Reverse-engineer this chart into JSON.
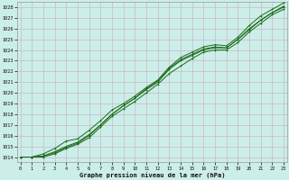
{
  "xlabel": "Graphe pression niveau de la mer (hPa)",
  "ylim": [
    1013.5,
    1028.5
  ],
  "xlim": [
    -0.3,
    23.3
  ],
  "yticks": [
    1014,
    1015,
    1016,
    1017,
    1018,
    1019,
    1020,
    1021,
    1022,
    1023,
    1024,
    1025,
    1026,
    1027,
    1028
  ],
  "xticks": [
    0,
    1,
    2,
    3,
    4,
    5,
    6,
    7,
    8,
    9,
    10,
    11,
    12,
    13,
    14,
    15,
    16,
    17,
    18,
    19,
    20,
    21,
    22,
    23
  ],
  "background_color": "#cceee8",
  "grid_color": "#c8b8c8",
  "line_color": "#1a6b1a",
  "series": [
    [
      1014.0,
      1014.0,
      1014.1,
      1014.5,
      1015.0,
      1015.4,
      1016.1,
      1017.0,
      1018.0,
      1018.8,
      1019.5,
      1020.3,
      1021.0,
      1022.2,
      1023.0,
      1023.5,
      1024.0,
      1024.2,
      1024.2,
      1025.0,
      1026.0,
      1026.8,
      1027.5,
      1028.0
    ],
    [
      1014.0,
      1014.0,
      1014.0,
      1014.3,
      1014.8,
      1015.2,
      1015.8,
      1016.8,
      1017.8,
      1018.5,
      1019.2,
      1020.0,
      1020.8,
      1021.8,
      1022.5,
      1023.2,
      1023.8,
      1024.0,
      1024.0,
      1024.7,
      1025.7,
      1026.5,
      1027.3,
      1027.8
    ],
    [
      1014.0,
      1014.0,
      1014.3,
      1014.8,
      1015.5,
      1015.7,
      1016.5,
      1017.4,
      1018.4,
      1019.0,
      1019.7,
      1020.5,
      1021.2,
      1022.4,
      1023.3,
      1023.8,
      1024.3,
      1024.5,
      1024.4,
      1025.2,
      1026.3,
      1027.2,
      1027.8,
      1028.4
    ],
    [
      1014.0,
      1014.0,
      1014.1,
      1014.4,
      1014.9,
      1015.3,
      1016.0,
      1017.0,
      1018.0,
      1018.8,
      1019.5,
      1020.4,
      1021.1,
      1022.3,
      1023.1,
      1023.6,
      1024.1,
      1024.3,
      1024.2,
      1025.0,
      1025.9,
      1026.8,
      1027.5,
      1028.1
    ]
  ],
  "marker_x": [
    0,
    1,
    2,
    3,
    4,
    5,
    6,
    7,
    8,
    9,
    10,
    11,
    12,
    13,
    14,
    15,
    16,
    17,
    18,
    19,
    20,
    21,
    22,
    23
  ]
}
